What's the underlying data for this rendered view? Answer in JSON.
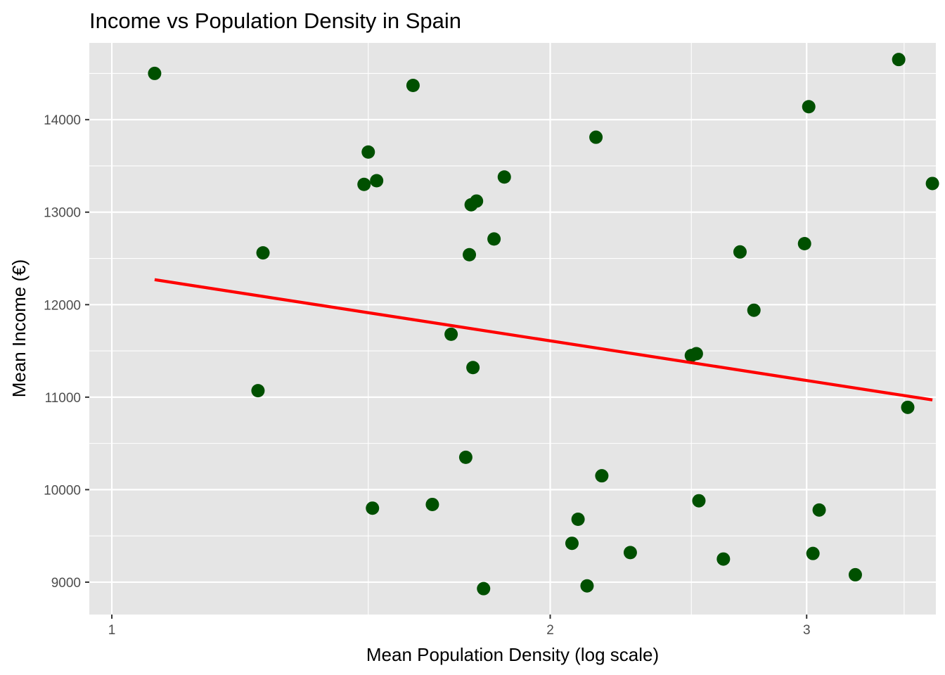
{
  "chart_data": {
    "type": "scatter",
    "title": "Income vs Population Density in Spain",
    "xlabel": "Mean Population Density (log scale)",
    "ylabel": "Mean Income (€)",
    "x_scale": "log",
    "xlim": [
      0.965,
      3.68
    ],
    "ylim": [
      8650,
      14830
    ],
    "x_ticks": [
      1,
      2,
      3
    ],
    "x_tick_labels": [
      "1",
      "2",
      "3"
    ],
    "x_minor_ticks": [
      1.5,
      2.5,
      3.5
    ],
    "y_ticks": [
      9000,
      10000,
      11000,
      12000,
      13000,
      14000
    ],
    "y_tick_labels": [
      "9000",
      "10000",
      "11000",
      "12000",
      "13000",
      "14000"
    ],
    "grid": true,
    "legend": "none",
    "colors": {
      "points": "#005000",
      "trend": "#ff0000",
      "panel": "#e5e5e5",
      "grid": "#ffffff"
    },
    "series": [
      {
        "points": [
          {
            "x": 1.07,
            "y": 14500
          },
          {
            "x": 1.26,
            "y": 11070
          },
          {
            "x": 1.27,
            "y": 12560
          },
          {
            "x": 1.49,
            "y": 13300
          },
          {
            "x": 1.5,
            "y": 13650
          },
          {
            "x": 1.51,
            "y": 9800
          },
          {
            "x": 1.52,
            "y": 13340
          },
          {
            "x": 1.61,
            "y": 14370
          },
          {
            "x": 1.66,
            "y": 9840
          },
          {
            "x": 1.71,
            "y": 11680
          },
          {
            "x": 1.75,
            "y": 10350
          },
          {
            "x": 1.76,
            "y": 12540
          },
          {
            "x": 1.765,
            "y": 13080
          },
          {
            "x": 1.77,
            "y": 11320
          },
          {
            "x": 1.78,
            "y": 13120
          },
          {
            "x": 1.8,
            "y": 8930
          },
          {
            "x": 1.83,
            "y": 12710
          },
          {
            "x": 1.86,
            "y": 13380
          },
          {
            "x": 2.07,
            "y": 9420
          },
          {
            "x": 2.09,
            "y": 9680
          },
          {
            "x": 2.12,
            "y": 8960
          },
          {
            "x": 2.15,
            "y": 13810
          },
          {
            "x": 2.17,
            "y": 10150
          },
          {
            "x": 2.27,
            "y": 9320
          },
          {
            "x": 2.5,
            "y": 11450
          },
          {
            "x": 2.52,
            "y": 11470
          },
          {
            "x": 2.53,
            "y": 9880
          },
          {
            "x": 2.63,
            "y": 9250
          },
          {
            "x": 2.7,
            "y": 12570
          },
          {
            "x": 2.76,
            "y": 11940
          },
          {
            "x": 2.99,
            "y": 12660
          },
          {
            "x": 3.01,
            "y": 14140
          },
          {
            "x": 3.03,
            "y": 9310
          },
          {
            "x": 3.06,
            "y": 9780
          },
          {
            "x": 3.24,
            "y": 9080
          },
          {
            "x": 3.47,
            "y": 14650
          },
          {
            "x": 3.52,
            "y": 10890
          },
          {
            "x": 3.66,
            "y": 13310
          }
        ]
      }
    ],
    "trend_line": {
      "x": [
        1.07,
        3.66
      ],
      "y": [
        12270,
        10970
      ]
    }
  }
}
